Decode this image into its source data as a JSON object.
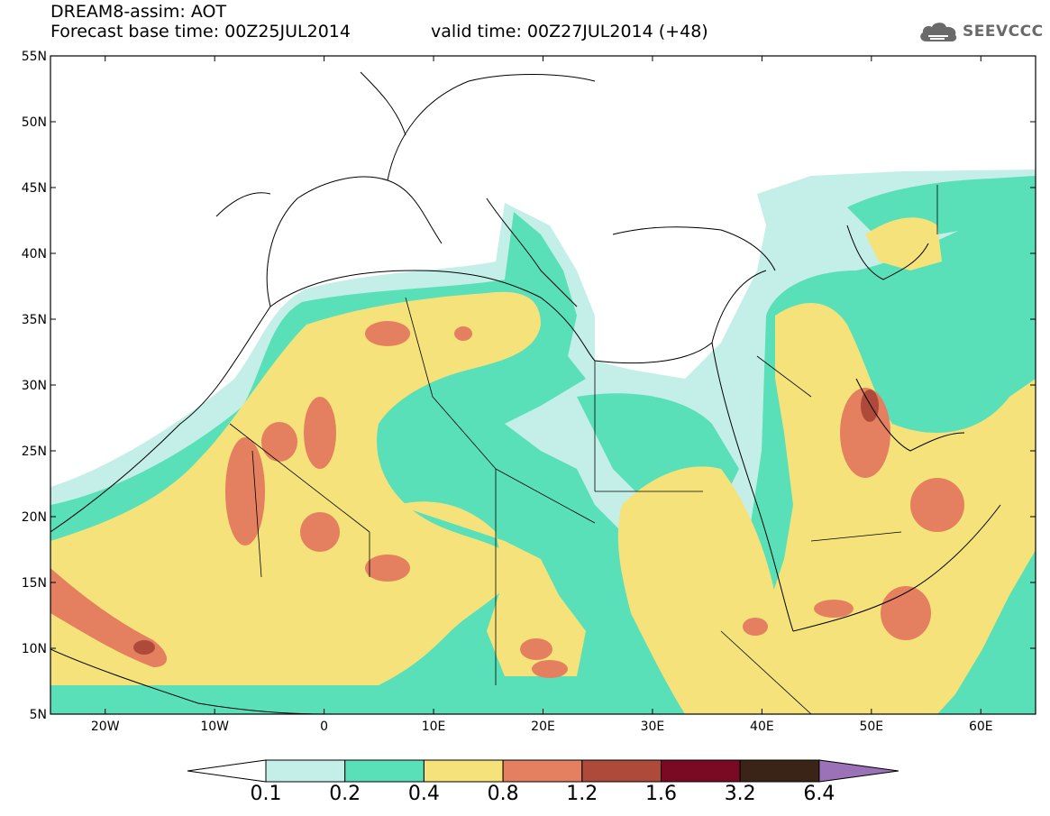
{
  "title": {
    "line1": "DREAM8-assim: AOT",
    "line2": "Forecast base time: 00Z25JUL2014",
    "valid": "valid time: 00Z27JUL2014 (+48)"
  },
  "logo": {
    "text": "SEEVCCC",
    "icon": "cloud-icon"
  },
  "map": {
    "lat_labels": [
      "55N",
      "50N",
      "45N",
      "40N",
      "35N",
      "30N",
      "25N",
      "20N",
      "15N",
      "10N",
      "5N"
    ],
    "lon_labels": [
      "20W",
      "10W",
      "0",
      "10E",
      "20E",
      "30E",
      "40E",
      "50E",
      "60E"
    ],
    "lat_range": [
      5,
      55
    ],
    "lon_range": [
      -25,
      65
    ],
    "field": "AOT"
  },
  "colorbar": {
    "levels": [
      "0.1",
      "0.2",
      "0.4",
      "0.8",
      "1.2",
      "1.6",
      "3.2",
      "6.4"
    ],
    "colors": [
      "#ffffff",
      "#c4efe8",
      "#5ae0b8",
      "#f5e27a",
      "#e48060",
      "#ad4a3a",
      "#7a0a24",
      "#3a2418",
      "#9b72b8"
    ]
  }
}
